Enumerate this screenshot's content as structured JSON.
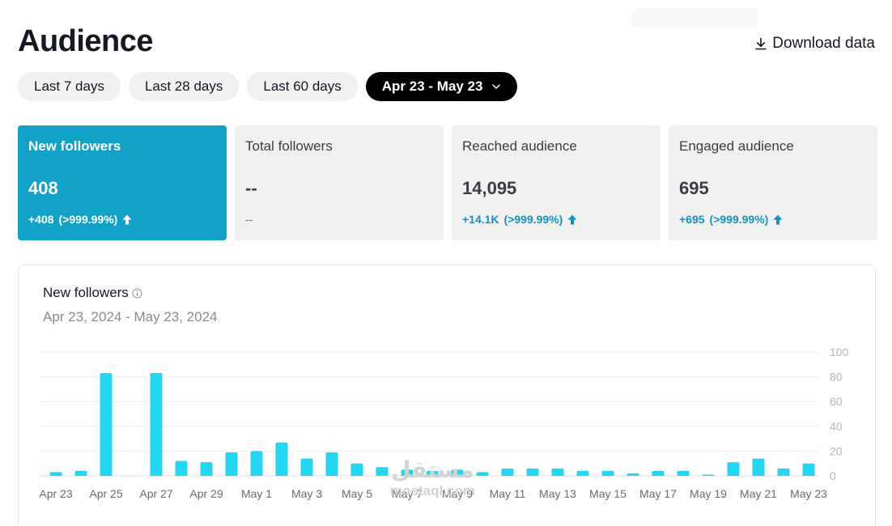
{
  "page": {
    "title": "Audience"
  },
  "actions": {
    "download_label": "Download data"
  },
  "range_tabs": [
    {
      "label": "Last 7 days",
      "active": false
    },
    {
      "label": "Last 28 days",
      "active": false
    },
    {
      "label": "Last 60 days",
      "active": false
    },
    {
      "label": "Apr 23 - May 23",
      "active": true
    }
  ],
  "cards": [
    {
      "label": "New followers",
      "value": "408",
      "delta": "+408",
      "delta_pct": "(>999.99%)",
      "trend": "up",
      "selected": true
    },
    {
      "label": "Total followers",
      "value": "--",
      "delta": "--",
      "delta_pct": "",
      "trend": "none",
      "selected": false
    },
    {
      "label": "Reached audience",
      "value": "14,095",
      "delta": "+14.1K",
      "delta_pct": "(>999.99%)",
      "trend": "up",
      "selected": false
    },
    {
      "label": "Engaged audience",
      "value": "695",
      "delta": "+695",
      "delta_pct": "(>999.99%)",
      "trend": "up",
      "selected": false
    }
  ],
  "chart_panel": {
    "title": "New followers",
    "subtitle": "Apr 23, 2024 - May 23, 2024"
  },
  "colors": {
    "accent": "#12a2c7",
    "bar": "#25d6f3",
    "delta": "#1293bf"
  },
  "icons": {
    "download": "download-icon",
    "chevron": "chevron-down-icon",
    "info": "info-icon",
    "trend_up": "arrow-up-icon"
  },
  "watermark": {
    "arabic": "مستقل",
    "latin": "mostaql.com"
  },
  "chart_data": {
    "type": "bar",
    "title": "New followers",
    "subtitle": "Apr 23, 2024 - May 23, 2024",
    "xlabel": "",
    "ylabel": "",
    "ylim": [
      0,
      100
    ],
    "yticks": [
      0,
      20,
      40,
      60,
      80,
      100
    ],
    "grid": true,
    "categories": [
      "Apr 23",
      "Apr 24",
      "Apr 25",
      "Apr 26",
      "Apr 27",
      "Apr 28",
      "Apr 29",
      "Apr 30",
      "May 1",
      "May 2",
      "May 3",
      "May 4",
      "May 5",
      "May 6",
      "May 7",
      "May 8",
      "May 9",
      "May 10",
      "May 11",
      "May 12",
      "May 13",
      "May 14",
      "May 15",
      "May 16",
      "May 17",
      "May 18",
      "May 19",
      "May 20",
      "May 21",
      "May 22",
      "May 23"
    ],
    "xtick_labels": [
      "Apr 23",
      "Apr 25",
      "Apr 27",
      "Apr 29",
      "May 1",
      "May 3",
      "May 5",
      "May 7",
      "May 9",
      "May 11",
      "May 13",
      "May 15",
      "May 17",
      "May 19",
      "May 21",
      "May 23"
    ],
    "values": [
      3,
      4,
      83,
      0,
      83,
      12,
      11,
      19,
      20,
      27,
      14,
      19,
      10,
      7,
      5,
      4,
      5,
      3,
      6,
      6,
      6,
      4,
      4,
      2,
      4,
      4,
      1,
      11,
      14,
      6,
      10
    ]
  }
}
